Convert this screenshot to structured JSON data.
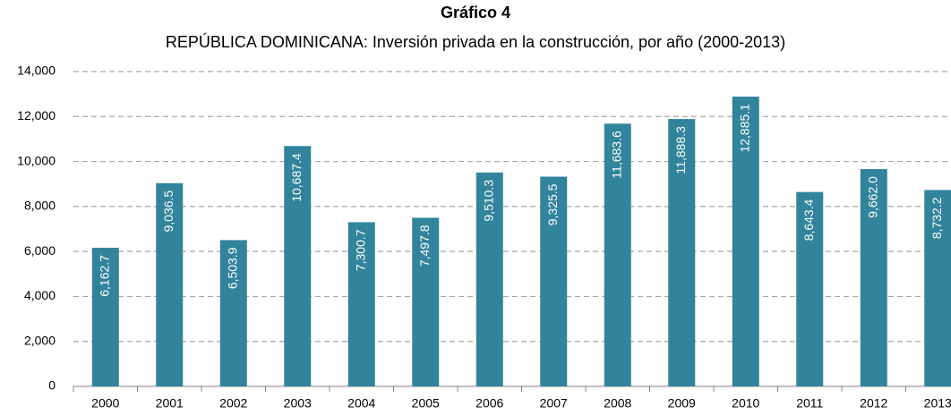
{
  "chart_data": {
    "type": "bar",
    "title": "Gráfico 4",
    "subtitle": "REPÚBLICA DOMINICANA: Inversión privada en la construcción, por año (2000-2013)",
    "categories": [
      "2000",
      "2001",
      "2002",
      "2003",
      "2004",
      "2005",
      "2006",
      "2007",
      "2008",
      "2009",
      "2010",
      "2011",
      "2012",
      "2013"
    ],
    "values": [
      6162.7,
      9036.5,
      6503.9,
      10687.4,
      7300.7,
      7497.8,
      9510.3,
      9325.5,
      11683.6,
      11888.3,
      12885.1,
      8643.4,
      9662.0,
      8732.2
    ],
    "value_labels": [
      "6,162.7",
      "9,036.5",
      "6,503.9",
      "10,687.4",
      "7,300.7",
      "7,497.8",
      "9,510.3",
      "9,325.5",
      "11,683.6",
      "11,888.3",
      "12,885.1",
      "8,643.4",
      "9,662.0",
      "8,732.2"
    ],
    "color": "#31849b",
    "ylim": [
      0,
      14000
    ],
    "yticks": [
      0,
      {
        "value": 2000,
        "label": "2,000"
      },
      {
        "value": 4000,
        "label": "4,000"
      },
      {
        "value": 6000,
        "label": "6,000"
      },
      {
        "value": 8000,
        "label": "8,000"
      },
      {
        "value": 10000,
        "label": "10,000"
      },
      {
        "value": 12000,
        "label": "12,000"
      },
      {
        "value": 14000,
        "label": "14,000"
      }
    ],
    "grid": true
  }
}
